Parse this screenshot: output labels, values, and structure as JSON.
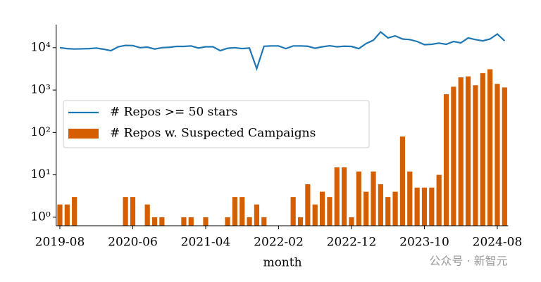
{
  "chart_data": {
    "type": "bar-line",
    "x_label": "month",
    "categories": [
      "2019-08",
      null,
      null,
      null,
      null,
      null,
      null,
      null,
      null,
      null,
      "2020-06",
      null,
      null,
      null,
      null,
      null,
      null,
      null,
      null,
      null,
      "2021-04",
      null,
      null,
      null,
      null,
      null,
      null,
      null,
      null,
      null,
      "2022-02",
      null,
      null,
      null,
      null,
      null,
      null,
      null,
      null,
      null,
      "2022-12",
      null,
      null,
      null,
      null,
      null,
      null,
      null,
      null,
      null,
      "2023-10",
      null,
      null,
      null,
      null,
      null,
      null,
      null,
      null,
      null,
      "2024-08",
      null
    ],
    "series": [
      {
        "name": "# Repos >= 50 stars",
        "kind": "line",
        "color": "#1f77b4",
        "values": [
          10000,
          9500,
          9300,
          9400,
          9500,
          9800,
          9200,
          8500,
          10500,
          11300,
          11200,
          10000,
          10300,
          9300,
          10000,
          10200,
          10700,
          10700,
          11000,
          9800,
          10500,
          10500,
          8500,
          9700,
          10000,
          9500,
          9800,
          3200,
          10800,
          11000,
          11000,
          9500,
          11000,
          11000,
          10800,
          9700,
          10500,
          11100,
          10500,
          10800,
          10700,
          9500,
          12500,
          15000,
          23500,
          17000,
          19000,
          16000,
          15500,
          14000,
          11800,
          12000,
          12800,
          12000,
          14000,
          13000,
          17000,
          15500,
          14500,
          16000,
          21000,
          14500
        ]
      },
      {
        "name": "# Repos w. Suspected Campaigns",
        "kind": "bar",
        "color": "#d55e00",
        "values": [
          2,
          2,
          3,
          null,
          null,
          null,
          null,
          null,
          null,
          3,
          3,
          null,
          2,
          1,
          1,
          null,
          null,
          1,
          1,
          null,
          1,
          null,
          null,
          1,
          3,
          3,
          1,
          2,
          1,
          null,
          null,
          null,
          3,
          1,
          6,
          2,
          4,
          3,
          15,
          15,
          1,
          12,
          4,
          12,
          6,
          3,
          4,
          80,
          12,
          5,
          5,
          5,
          10,
          800,
          1200,
          2000,
          2100,
          1300,
          2500,
          3100,
          1400,
          1150
        ]
      }
    ],
    "log_y": true,
    "ylim": [
      0.63,
      35000
    ],
    "yticks": [
      {
        "value": 1,
        "label": "10⁰"
      },
      {
        "value": 10,
        "label": "10¹"
      },
      {
        "value": 100,
        "label": "10²"
      },
      {
        "value": 1000,
        "label": "10³"
      },
      {
        "value": 10000,
        "label": "10⁴"
      }
    ],
    "legend": "center-left"
  },
  "watermark": "公众号 · 新智元"
}
